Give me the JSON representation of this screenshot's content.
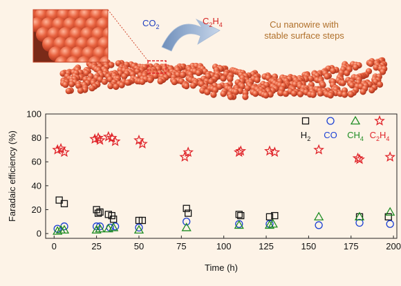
{
  "illustration": {
    "reactant": "CO",
    "reactant_sub": "2",
    "product_c": "C",
    "product_sub1": "2",
    "product_h": "H",
    "product_sub2": "4",
    "caption_line1": "Cu nanowire with",
    "caption_line2": "stable surface steps",
    "colors": {
      "background": "#fdf3e7",
      "copper": "#e4603f",
      "copper_dark": "#b8381f",
      "arrow": "#8fa9c9",
      "caption": "#b0702a",
      "co2_label": "#1f3fbf",
      "c2h4_label": "#d42020"
    }
  },
  "chart_data": {
    "type": "scatter",
    "xlabel": "Time (h)",
    "ylabel": "Faradaic efficiency (%)",
    "xlim": [
      -5,
      202
    ],
    "ylim": [
      -4,
      100
    ],
    "xticks": [
      0,
      25,
      50,
      75,
      100,
      125,
      150,
      175,
      200
    ],
    "yticks": [
      0,
      20,
      40,
      60,
      80,
      100
    ],
    "grid": false,
    "legend_position": "top-right",
    "series": [
      {
        "name_parts": [
          "H",
          "2",
          ""
        ],
        "marker": "square",
        "color": "#111111",
        "points": [
          [
            3,
            28
          ],
          [
            6,
            25
          ],
          [
            25,
            20
          ],
          [
            26,
            17
          ],
          [
            27,
            18
          ],
          [
            32,
            16
          ],
          [
            34,
            15
          ],
          [
            35,
            12
          ],
          [
            50,
            11
          ],
          [
            52,
            11
          ],
          [
            78,
            21
          ],
          [
            79,
            17
          ],
          [
            109,
            16
          ],
          [
            110,
            15
          ],
          [
            127,
            14
          ],
          [
            130,
            15
          ],
          [
            180,
            14
          ],
          [
            197,
            14
          ]
        ]
      },
      {
        "name_parts": [
          "CO",
          "",
          ""
        ],
        "marker": "circle",
        "color": "#1a3fd4",
        "points": [
          [
            2,
            4
          ],
          [
            6,
            6
          ],
          [
            25,
            6
          ],
          [
            27,
            6
          ],
          [
            33,
            5
          ],
          [
            36,
            6
          ],
          [
            50,
            5
          ],
          [
            78,
            10
          ],
          [
            109,
            8
          ],
          [
            127,
            8
          ],
          [
            156,
            7
          ],
          [
            180,
            9
          ],
          [
            198,
            8
          ]
        ]
      },
      {
        "name_parts": [
          "CH",
          "4",
          ""
        ],
        "marker": "triangle",
        "color": "#1e8c23",
        "points": [
          [
            2,
            2
          ],
          [
            4,
            3
          ],
          [
            6,
            3
          ],
          [
            25,
            3
          ],
          [
            27,
            4
          ],
          [
            32,
            4
          ],
          [
            35,
            5
          ],
          [
            50,
            3
          ],
          [
            78,
            5
          ],
          [
            109,
            7
          ],
          [
            127,
            7
          ],
          [
            129,
            8
          ],
          [
            156,
            14
          ],
          [
            180,
            14
          ],
          [
            198,
            18
          ]
        ]
      },
      {
        "name_parts": [
          "C",
          "2",
          "H"
        ],
        "name_suffix": "4",
        "marker": "star",
        "color": "#e0242a",
        "points": [
          [
            2,
            70
          ],
          [
            4,
            71
          ],
          [
            6,
            68
          ],
          [
            24,
            79
          ],
          [
            26,
            80
          ],
          [
            27,
            78
          ],
          [
            32,
            81
          ],
          [
            34,
            80
          ],
          [
            36,
            77
          ],
          [
            50,
            78
          ],
          [
            52,
            75
          ],
          [
            77,
            64
          ],
          [
            79,
            68
          ],
          [
            109,
            68
          ],
          [
            110,
            69
          ],
          [
            127,
            69
          ],
          [
            130,
            68
          ],
          [
            156,
            70
          ],
          [
            179,
            63
          ],
          [
            180,
            62
          ],
          [
            198,
            64
          ]
        ]
      }
    ]
  }
}
